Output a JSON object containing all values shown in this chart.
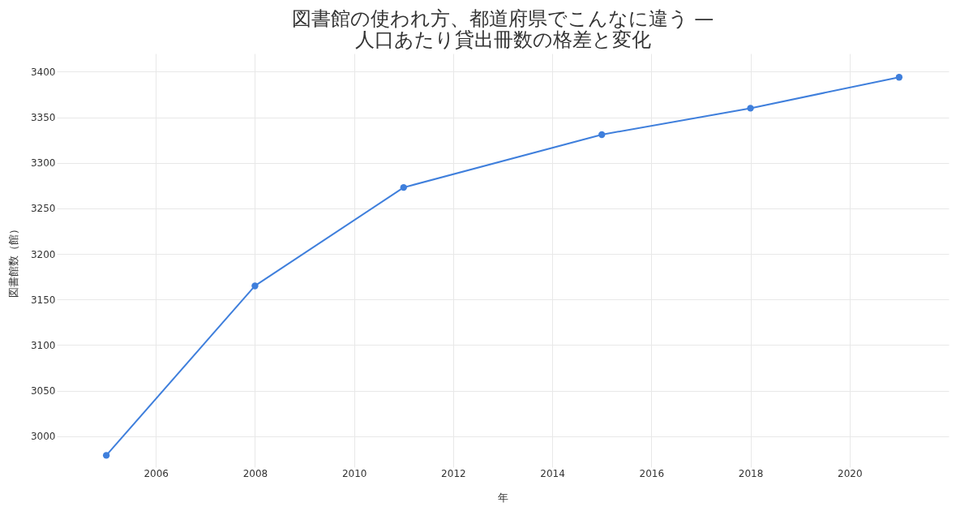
{
  "chart_data": {
    "type": "line",
    "title": [
      "図書館の使われ方、都道府県でこんなに違う —",
      "人口あたり貸出冊数の格差と変化"
    ],
    "xlabel": "年",
    "ylabel": "図書館数（館）",
    "x": [
      2005,
      2008,
      2011,
      2015,
      2018,
      2021
    ],
    "series": [
      {
        "color": "#3f7fdc",
        "values": [
          2979,
          3165,
          3273,
          3331,
          3360,
          3394
        ]
      }
    ],
    "xlim": [
      2004,
      2022
    ],
    "xticks": [
      2006,
      2008,
      2010,
      2012,
      2014,
      2016,
      2018,
      2020
    ],
    "ylim": [
      2966,
      3420
    ],
    "yticks": [
      3000,
      3050,
      3100,
      3150,
      3200,
      3250,
      3300,
      3350,
      3400
    ],
    "grid": true,
    "marker": "circle",
    "line_style": "solid"
  }
}
